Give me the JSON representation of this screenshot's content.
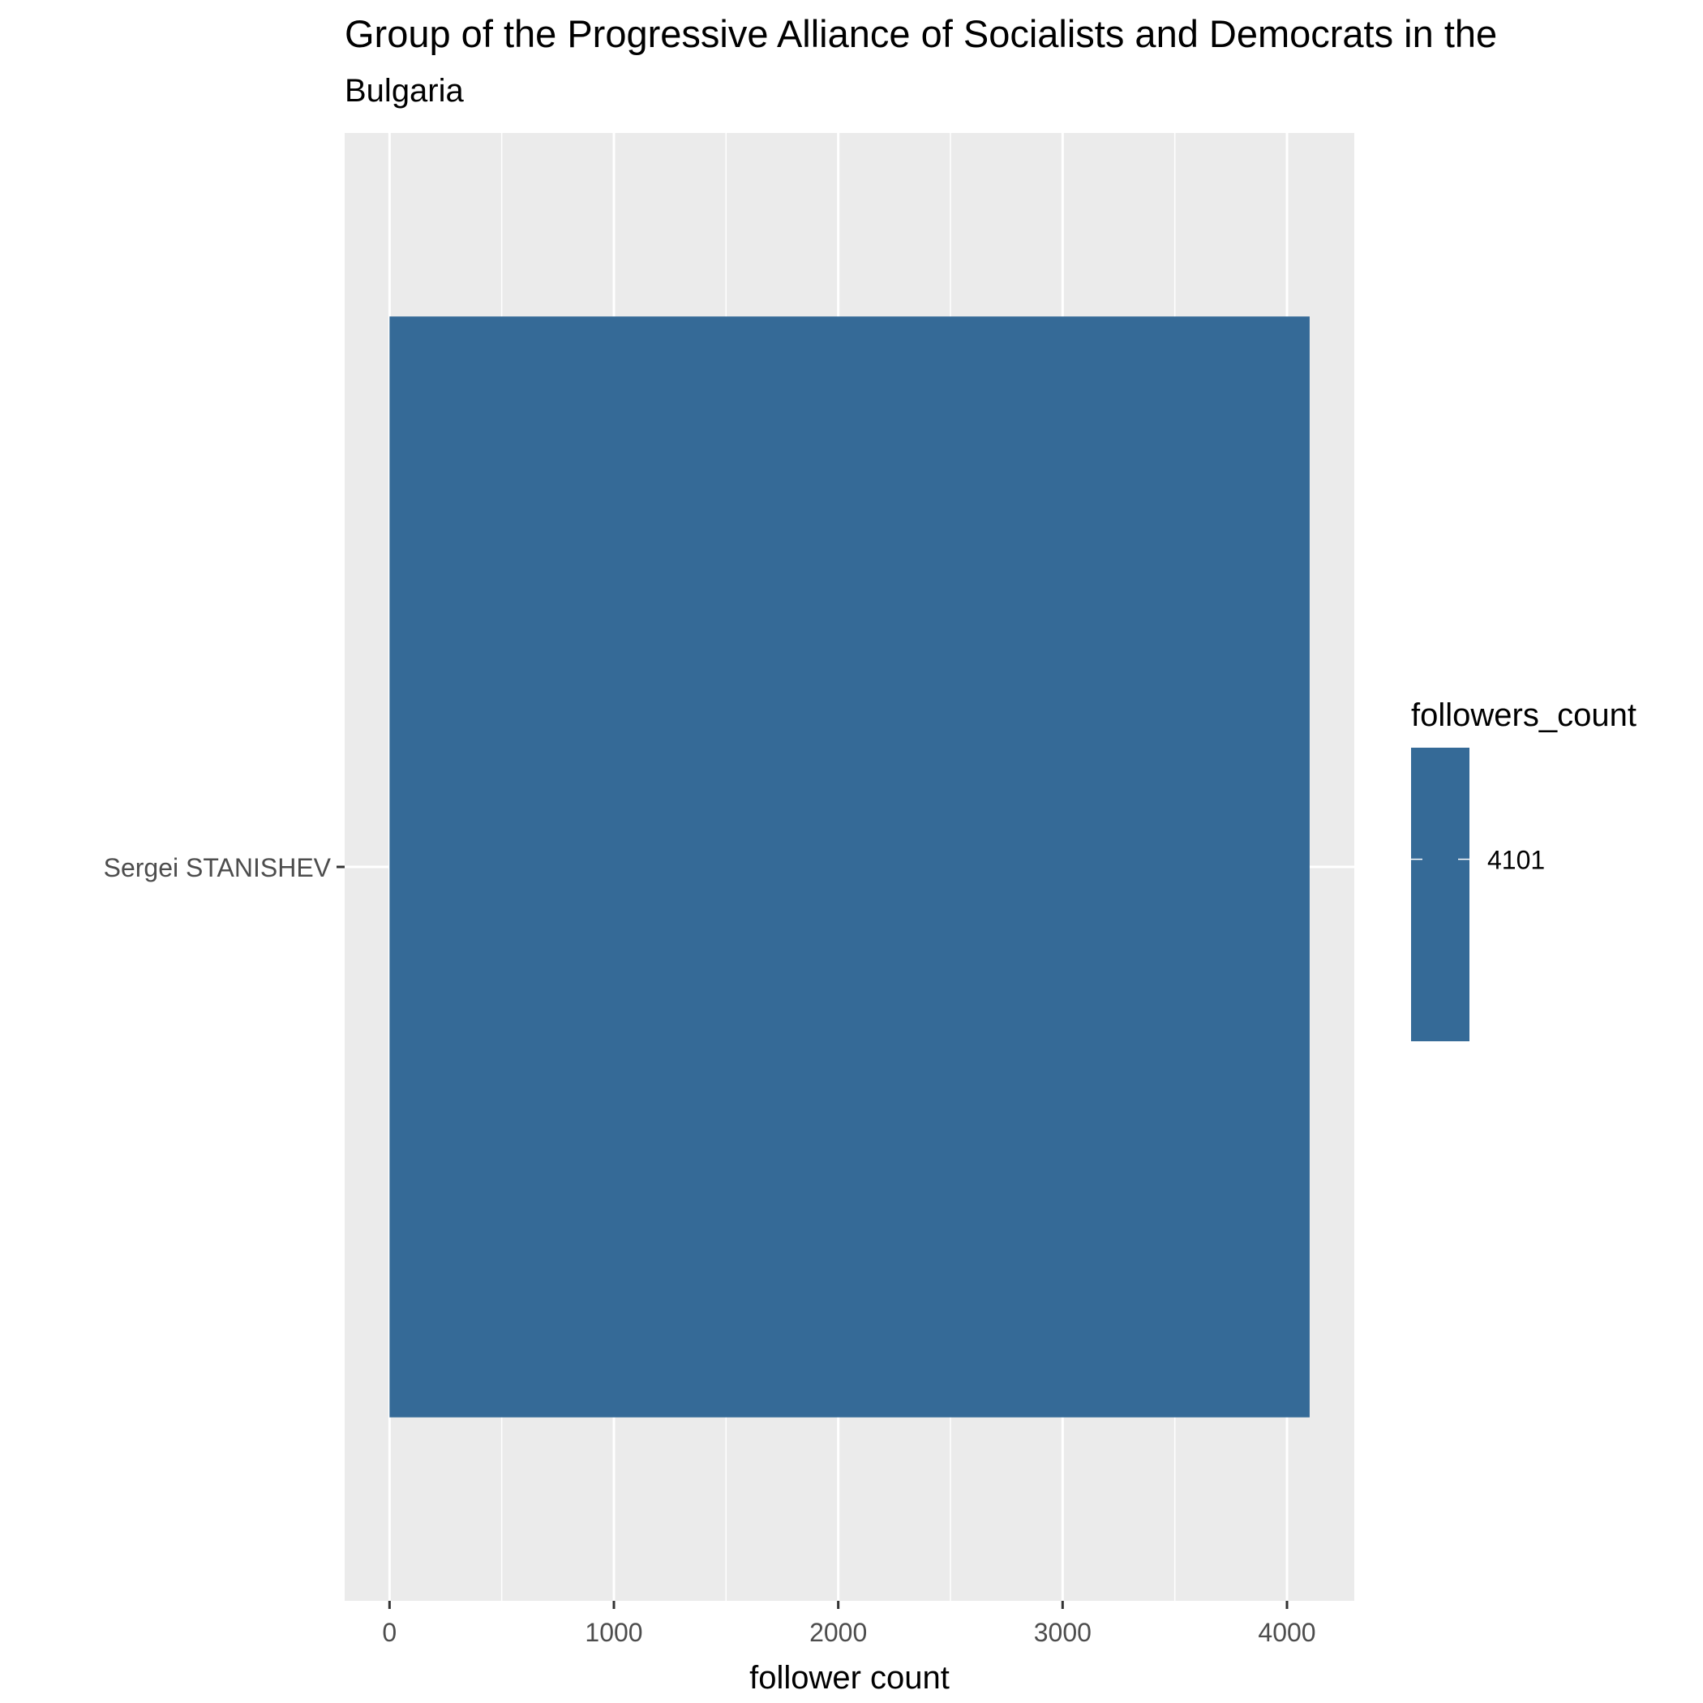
{
  "chart_data": {
    "type": "bar",
    "orientation": "horizontal",
    "title": "Group of the Progressive Alliance of Socialists and Democrats in the",
    "subtitle": "Bulgaria",
    "xlabel": "follower count",
    "ylabel": "",
    "categories": [
      "Sergei STANISHEV"
    ],
    "values": [
      4101
    ],
    "xlim": [
      -200,
      4300
    ],
    "x_ticks": [
      0,
      1000,
      2000,
      3000,
      4000
    ],
    "x_tick_labels": [
      "0",
      "1000",
      "2000",
      "3000",
      "4000"
    ],
    "grid": true,
    "legend": {
      "title": "followers_count",
      "placement": "right",
      "labels": [
        "4101"
      ]
    },
    "colors": {
      "bar": "#356a97",
      "panel_background": "#ebebeb",
      "grid": "#ffffff"
    }
  }
}
